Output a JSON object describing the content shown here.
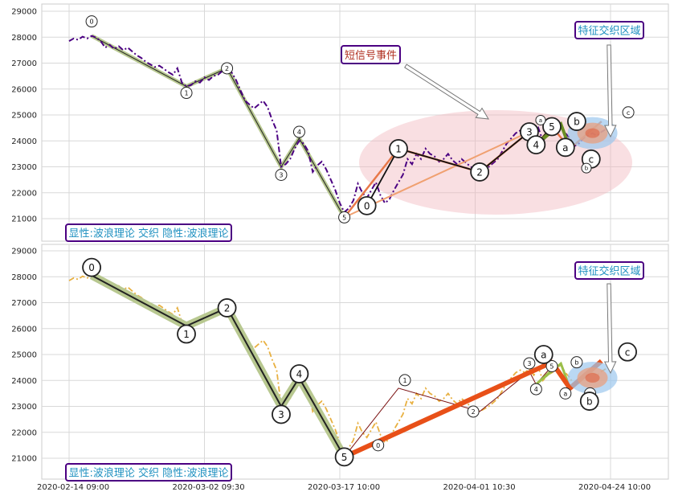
{
  "chart_data": [
    {
      "type": "line",
      "title": "",
      "xlabel": "",
      "ylabel": "",
      "ylim": [
        20300,
        29200
      ],
      "y_ticks": [
        21000,
        22000,
        23000,
        24000,
        25000,
        26000,
        27000,
        28000,
        29000
      ],
      "grid": true,
      "price_series_color": "#4b0082",
      "price_series_style": "dash-dot",
      "price_series": [
        [
          0,
          27850
        ],
        [
          2,
          27950
        ],
        [
          4,
          27900
        ],
        [
          6,
          28020
        ],
        [
          8,
          27950
        ],
        [
          10,
          28050
        ],
        [
          12,
          27980
        ],
        [
          14,
          27850
        ],
        [
          16,
          27600
        ],
        [
          18,
          27700
        ],
        [
          20,
          27550
        ],
        [
          22,
          27650
        ],
        [
          24,
          27500
        ],
        [
          26,
          27600
        ],
        [
          28,
          27450
        ],
        [
          30,
          27300
        ],
        [
          32,
          27200
        ],
        [
          34,
          27050
        ],
        [
          36,
          26950
        ],
        [
          38,
          26850
        ],
        [
          40,
          26900
        ],
        [
          42,
          26780
        ],
        [
          44,
          26650
        ],
        [
          46,
          26550
        ],
        [
          48,
          26800
        ],
        [
          50,
          26250
        ],
        [
          52,
          26100
        ],
        [
          54,
          26150
        ],
        [
          56,
          26300
        ],
        [
          58,
          26250
        ],
        [
          60,
          26450
        ],
        [
          62,
          26350
        ],
        [
          64,
          26500
        ],
        [
          66,
          26550
        ],
        [
          68,
          26700
        ],
        [
          70,
          26750
        ],
        [
          72,
          26650
        ],
        [
          74,
          26350
        ],
        [
          76,
          25950
        ],
        [
          78,
          25550
        ],
        [
          80,
          25400
        ],
        [
          82,
          25250
        ],
        [
          84,
          25400
        ],
        [
          86,
          25550
        ],
        [
          88,
          25300
        ],
        [
          90,
          24800
        ],
        [
          92,
          24400
        ],
        [
          94,
          23000
        ],
        [
          96,
          23100
        ],
        [
          98,
          23300
        ],
        [
          100,
          23700
        ],
        [
          102,
          24000
        ],
        [
          104,
          23900
        ],
        [
          106,
          23600
        ],
        [
          108,
          22800
        ],
        [
          110,
          23050
        ],
        [
          112,
          23200
        ],
        [
          114,
          22900
        ],
        [
          116,
          22500
        ],
        [
          118,
          22100
        ],
        [
          120,
          21600
        ],
        [
          122,
          21250
        ],
        [
          124,
          21400
        ],
        [
          126,
          21700
        ],
        [
          128,
          22350
        ],
        [
          130,
          22000
        ],
        [
          132,
          21800
        ],
        [
          134,
          22100
        ],
        [
          136,
          22400
        ],
        [
          138,
          21900
        ],
        [
          140,
          21600
        ],
        [
          142,
          21750
        ],
        [
          144,
          22100
        ],
        [
          146,
          22400
        ],
        [
          148,
          22700
        ],
        [
          150,
          23300
        ],
        [
          152,
          23100
        ],
        [
          154,
          23500
        ],
        [
          156,
          23300
        ],
        [
          158,
          23700
        ],
        [
          160,
          23500
        ],
        [
          162,
          23400
        ],
        [
          164,
          23200
        ],
        [
          166,
          23300
        ],
        [
          168,
          23500
        ],
        [
          170,
          23250
        ],
        [
          172,
          23100
        ],
        [
          174,
          23300
        ],
        [
          176,
          23150
        ],
        [
          178,
          23000
        ],
        [
          180,
          22900
        ],
        [
          182,
          22800
        ],
        [
          184,
          22900
        ],
        [
          186,
          23000
        ],
        [
          188,
          23150
        ],
        [
          190,
          23300
        ],
        [
          192,
          23600
        ],
        [
          194,
          23900
        ],
        [
          196,
          24100
        ],
        [
          198,
          24300
        ],
        [
          200,
          24400
        ],
        [
          202,
          24300
        ],
        [
          204,
          24450
        ],
        [
          206,
          24200
        ],
        [
          208,
          24500
        ],
        [
          210,
          24000
        ],
        [
          212,
          24200
        ],
        [
          214,
          24300
        ],
        [
          216,
          24450
        ],
        [
          218,
          24600
        ],
        [
          220,
          24300
        ],
        [
          222,
          24100
        ],
        [
          224,
          23800
        ],
        [
          226,
          23900
        ],
        [
          228,
          24100
        ],
        [
          230,
          24200
        ],
        [
          232,
          24300
        ],
        [
          234,
          24200
        ],
        [
          236,
          24350
        ],
        [
          238,
          24450
        ],
        [
          240,
          24500
        ]
      ],
      "wave_labels": [
        "0",
        "1",
        "2",
        "3",
        "4",
        "5",
        "0",
        "1",
        "2",
        "3",
        "4",
        "5",
        "a",
        "b",
        "c",
        "a",
        "b",
        "c"
      ],
      "annotations": [
        {
          "text": "短信号事件",
          "border": "#4b0082",
          "color": "#b03020"
        },
        {
          "text": "特征交织区域",
          "border": "#4b0082",
          "color": "#1e90c0"
        },
        {
          "text": "显性:波浪理论 交织 隐性:波浪理论",
          "border": "#4b0082",
          "color": "#1e90c0"
        }
      ]
    },
    {
      "type": "line",
      "title": "",
      "xlabel": "",
      "ylabel": "",
      "ylim": [
        20200,
        29200
      ],
      "y_ticks": [
        21000,
        22000,
        23000,
        24000,
        25000,
        26000,
        27000,
        28000,
        29000
      ],
      "x_tick_labels": [
        "2020-02-14 09:00",
        "2020-03-02 09:30",
        "2020-03-17 10:00",
        "2020-04-01 10:30",
        "2020-04-24 10:00"
      ],
      "grid": true,
      "price_series_color": "#e8b040",
      "price_series_style": "dash-dot",
      "wave_labels": [
        "0",
        "1",
        "2",
        "3",
        "4",
        "5",
        "0",
        "1",
        "2",
        "3",
        "4",
        "5",
        "a",
        "b",
        "c",
        "a",
        "b",
        "c"
      ],
      "annotations": [
        {
          "text": "特征交织区域",
          "border": "#4b0082",
          "color": "#1e90c0"
        },
        {
          "text": "显性:波浪理论 交织 隐性:波浪理论",
          "border": "#4b0082",
          "color": "#1e90c0"
        }
      ]
    }
  ]
}
